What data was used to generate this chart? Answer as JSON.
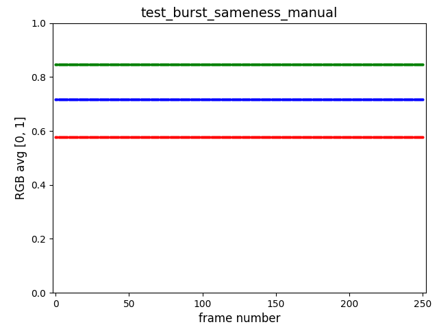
{
  "title": "test_burst_sameness_manual",
  "xlabel": "frame number",
  "ylabel": "RGB avg [0, 1]",
  "xlim": [
    -2,
    252
  ],
  "ylim": [
    0.0,
    1.0
  ],
  "n_frames": 251,
  "red_value": 0.576,
  "green_value": 0.847,
  "blue_value": 0.718,
  "red_color": "red",
  "green_color": "green",
  "blue_color": "blue",
  "marker": ".",
  "markersize": 4,
  "linestyle": "none",
  "title_fontsize": 14,
  "label_fontsize": 12,
  "figsize": [
    6.41,
    4.8
  ],
  "dpi": 100
}
